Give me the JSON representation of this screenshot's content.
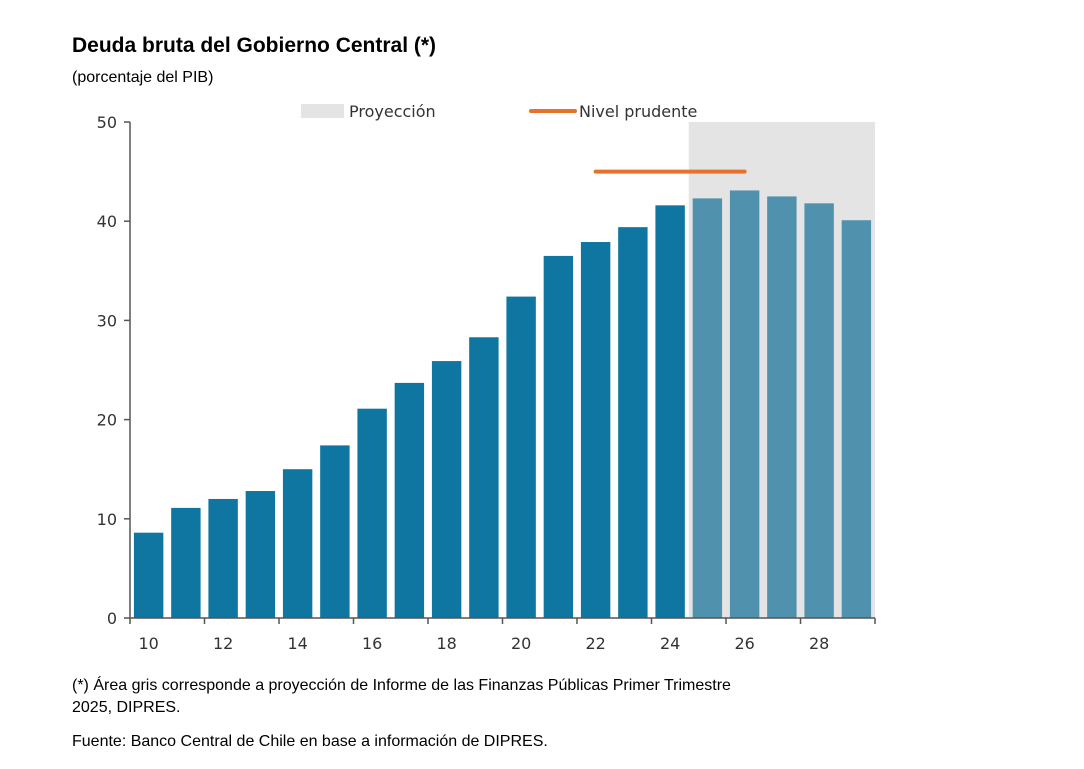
{
  "chart_data": {
    "type": "bar",
    "title": "Deuda bruta del Gobierno Central (*)",
    "subtitle": "(porcentaje del PIB)",
    "x_values": [
      10,
      11,
      12,
      13,
      14,
      15,
      16,
      17,
      18,
      19,
      20,
      21,
      22,
      23,
      24,
      25,
      26,
      27,
      28,
      29
    ],
    "x_tick_labels": [
      "10",
      "12",
      "14",
      "16",
      "18",
      "20",
      "22",
      "24",
      "26",
      "28"
    ],
    "values": [
      8.6,
      11.1,
      12.0,
      12.8,
      15.0,
      17.4,
      21.1,
      23.7,
      25.9,
      28.3,
      32.4,
      36.5,
      37.9,
      39.4,
      41.6,
      42.3,
      43.1,
      42.5,
      41.8,
      40.1
    ],
    "projection_from_index": 15,
    "ylim": [
      0,
      50
    ],
    "y_ticks": [
      0,
      10,
      20,
      30,
      40,
      50
    ],
    "prudent_level": {
      "value": 45,
      "x_start": 22,
      "x_end": 26
    },
    "legend": {
      "position": "top",
      "projection_label": "Proyección",
      "prudent_label": "Nivel prudente"
    },
    "colors": {
      "historical": "#0e76a0",
      "projection": "#5092ad",
      "projection_area": "#e4e4e4",
      "prudent_line": "#e8722c",
      "axis": "#555555"
    },
    "grid": false,
    "xlabel": "",
    "ylabel": ""
  },
  "note": "(*) Área gris corresponde a proyección de Informe de las Finanzas Públicas Primer Trimestre 2025, DIPRES.",
  "source": "Fuente: Banco Central de Chile en base a información de DIPRES."
}
